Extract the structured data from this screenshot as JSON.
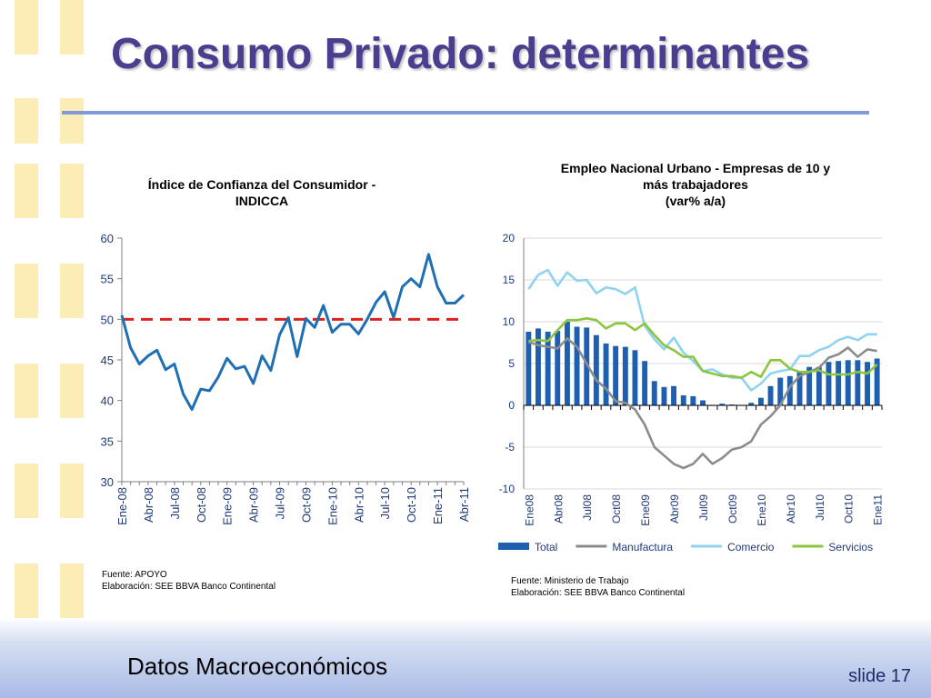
{
  "slide": {
    "title": "Consumo Privado: determinantes",
    "footer_left": "Datos Macroeconómicos",
    "footer_right": "slide 17"
  },
  "left_chart": {
    "title_line1": "Índice de Confianza del Consumidor -",
    "title_line2": "INDICCA",
    "source_line1": "Fuente: APOYO",
    "source_line2": "Elaboración: SEE BBVA Banco Continental"
  },
  "right_chart": {
    "title_line1": "Empleo Nacional Urbano - Empresas de 10 y",
    "title_line2": "más trabajadores",
    "title_line3": "(var% a/a)",
    "source_line1": "Fuente: Ministerio de Trabajo",
    "source_line2": "Elaboración: SEE BBVA Banco Continental"
  },
  "chart_data": [
    {
      "type": "line",
      "title": "Índice de Confianza del Consumidor - INDICCA",
      "ylim": [
        30,
        60
      ],
      "yticks": [
        30,
        35,
        40,
        45,
        50,
        55,
        60
      ],
      "tick_labels": [
        "Ene-08",
        "Abr-08",
        "Jul-08",
        "Oct-08",
        "Ene-09",
        "Abr-09",
        "Jul-09",
        "Oct-09",
        "Ene-10",
        "Abr-10",
        "Jul-10",
        "Oct-10",
        "Ene-11",
        "Abr-11"
      ],
      "reference_line": {
        "value": 50,
        "color": "#e0201b",
        "style": "dashed"
      },
      "series": [
        {
          "color": "#1f6fb5",
          "values": [
            50.5,
            46.5,
            44.5,
            45.5,
            46.2,
            43.8,
            44.5,
            40.8,
            38.9,
            41.4,
            41.2,
            42.9,
            45.2,
            43.9,
            44.2,
            42.1,
            45.5,
            43.7,
            48.1,
            50.2,
            45.4,
            50.1,
            49.0,
            51.7,
            48.4,
            49.4,
            49.4,
            48.2,
            50.0,
            52.1,
            53.4,
            50.2,
            54.0,
            55.0,
            54.0,
            58.0,
            54.0,
            52.0,
            52.0,
            53.0
          ]
        }
      ]
    },
    {
      "type": "bar",
      "title": "Empleo Nacional Urbano - Empresas de 10 y más trabajadores (var% a/a)",
      "ylim": [
        -10,
        20
      ],
      "yticks": [
        -10,
        -5,
        0,
        5,
        10,
        15,
        20
      ],
      "tick_labels": [
        "Ene08",
        "Abr08",
        "Jul08",
        "Oct08",
        "Ene09",
        "Abr09",
        "Jul09",
        "Oct09",
        "Ene10",
        "Abr10",
        "Jul10",
        "Oct10",
        "Ene11"
      ],
      "legend_position": "bottom",
      "series": [
        {
          "name": "Total",
          "type": "bar",
          "color": "#1f5fb0",
          "values": [
            8.8,
            9.2,
            8.8,
            8.9,
            10.0,
            9.4,
            9.3,
            8.4,
            7.4,
            7.1,
            7.0,
            6.6,
            5.3,
            2.9,
            2.2,
            2.3,
            1.2,
            1.1,
            0.6,
            0.0,
            0.2,
            0.1,
            0.0,
            0.3,
            0.9,
            2.3,
            3.3,
            3.5,
            4.1,
            4.6,
            4.6,
            5.2,
            5.3,
            5.4,
            5.4,
            5.2,
            5.6
          ]
        },
        {
          "name": "Manufactura",
          "type": "line",
          "color": "#8c8c8c",
          "values": [
            7.6,
            7.2,
            7.0,
            6.8,
            8.0,
            7.0,
            5.0,
            3.0,
            2.0,
            0.5,
            0.3,
            -0.5,
            -2.3,
            -5.0,
            -6.0,
            -7.0,
            -7.5,
            -7.0,
            -5.8,
            -7.0,
            -6.3,
            -5.3,
            -5.0,
            -4.3,
            -2.3,
            -1.3,
            0.0,
            2.2,
            3.5,
            4.0,
            4.5,
            5.7,
            6.1,
            6.9,
            5.8,
            6.7,
            6.5
          ]
        },
        {
          "name": "Comercio",
          "type": "line",
          "color": "#8fd3f2",
          "values": [
            13.9,
            15.6,
            16.2,
            14.3,
            15.9,
            14.9,
            15.0,
            13.4,
            14.1,
            13.9,
            13.3,
            14.1,
            9.5,
            7.9,
            6.7,
            8.1,
            6.3,
            5.3,
            4.1,
            4.3,
            3.7,
            3.3,
            3.3,
            1.8,
            2.6,
            3.8,
            4.1,
            4.3,
            5.9,
            5.9,
            6.6,
            7.0,
            7.8,
            8.2,
            7.8,
            8.5,
            8.5
          ]
        },
        {
          "name": "Servicios",
          "type": "line",
          "color": "#8cc63e",
          "values": [
            7.7,
            7.8,
            7.7,
            9.0,
            10.2,
            10.2,
            10.4,
            10.2,
            9.2,
            9.8,
            9.8,
            9.0,
            9.8,
            8.4,
            7.2,
            6.6,
            5.8,
            5.8,
            4.1,
            3.8,
            3.5,
            3.5,
            3.3,
            4.0,
            3.4,
            5.4,
            5.4,
            4.4,
            4.0,
            4.0,
            4.2,
            3.7,
            3.7,
            3.7,
            4.0,
            3.8,
            4.9
          ]
        }
      ]
    }
  ]
}
